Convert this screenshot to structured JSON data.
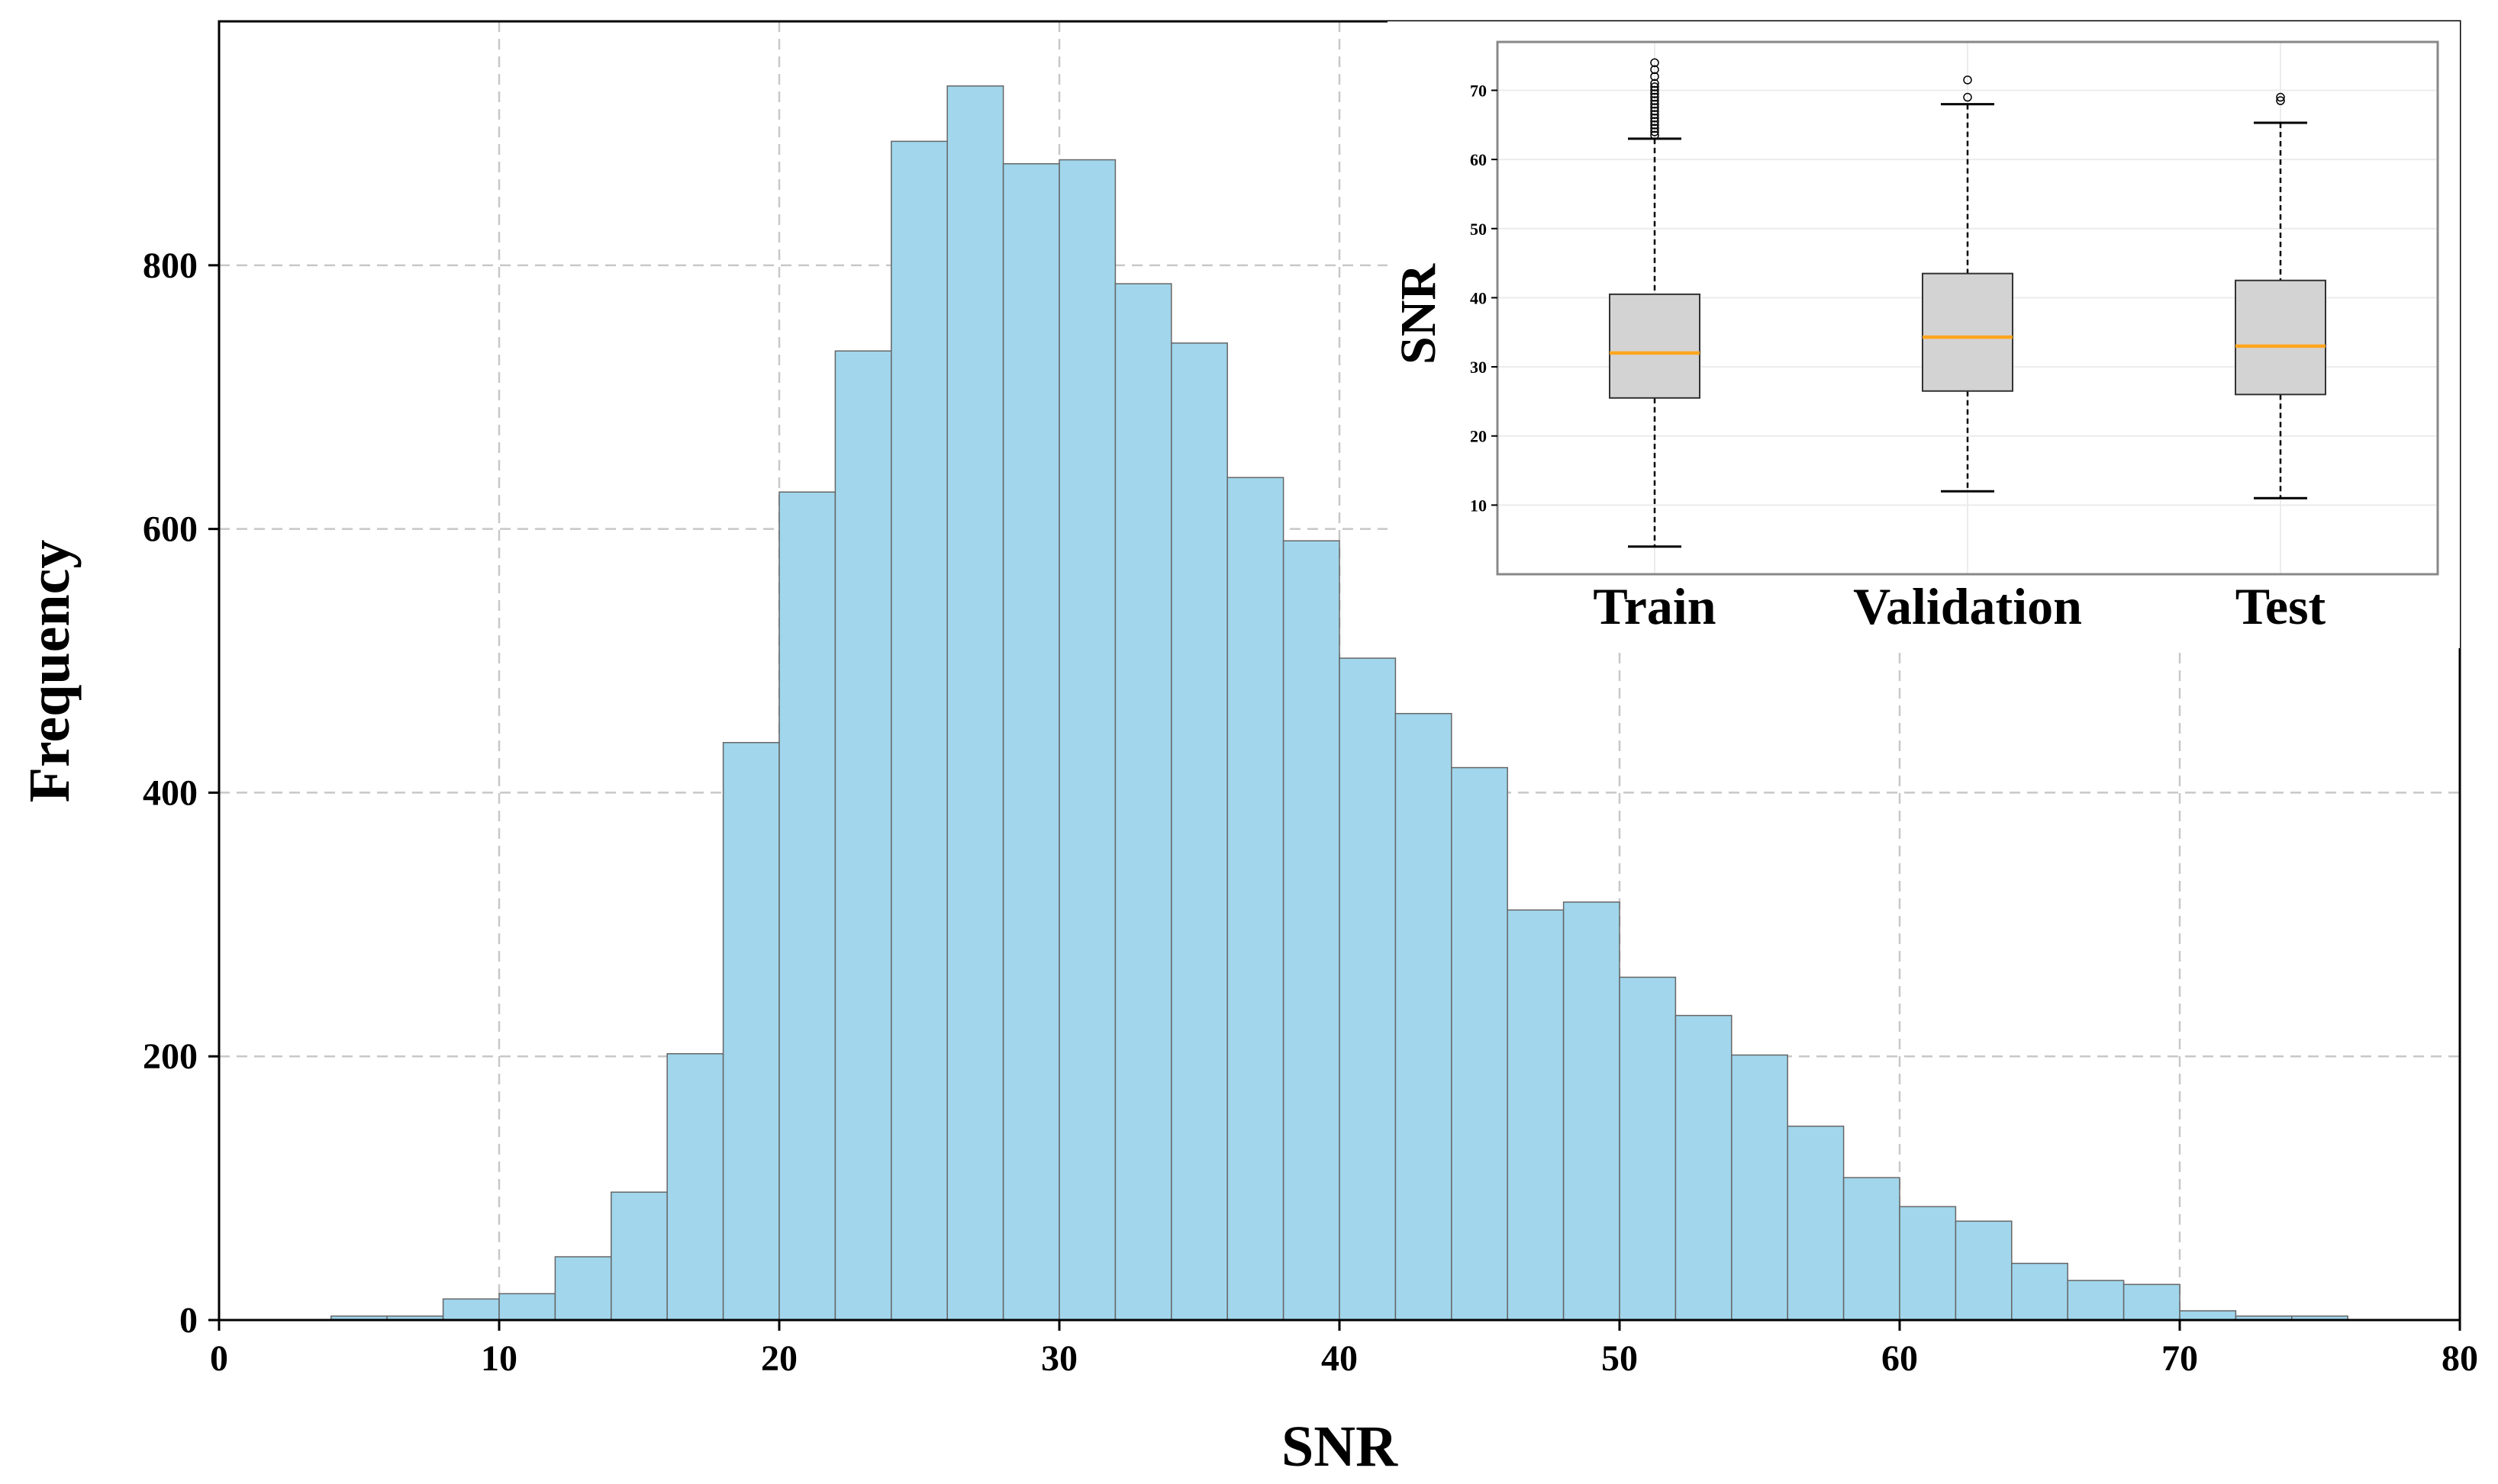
{
  "chart_data": [
    {
      "type": "bar",
      "subtype": "histogram",
      "title": "",
      "xlabel": "SNR",
      "ylabel": "Frequency",
      "xlim": [
        0,
        80
      ],
      "ylim": [
        0,
        985
      ],
      "xticks": [
        0,
        10,
        20,
        30,
        40,
        50,
        60,
        70,
        80
      ],
      "yticks": [
        0,
        200,
        400,
        600,
        800
      ],
      "grid": true,
      "bar_color": "#a1d6ec",
      "edge_color": "#666666",
      "bin_width": 2,
      "bins": [
        {
          "x0": 4,
          "x1": 6,
          "count": 3
        },
        {
          "x0": 6,
          "x1": 8,
          "count": 3
        },
        {
          "x0": 8,
          "x1": 10,
          "count": 16
        },
        {
          "x0": 10,
          "x1": 12,
          "count": 20
        },
        {
          "x0": 12,
          "x1": 14,
          "count": 48
        },
        {
          "x0": 14,
          "x1": 16,
          "count": 97
        },
        {
          "x0": 16,
          "x1": 18,
          "count": 202
        },
        {
          "x0": 18,
          "x1": 20,
          "count": 438
        },
        {
          "x0": 20,
          "x1": 22,
          "count": 628
        },
        {
          "x0": 22,
          "x1": 24,
          "count": 735
        },
        {
          "x0": 24,
          "x1": 26,
          "count": 894
        },
        {
          "x0": 26,
          "x1": 28,
          "count": 936
        },
        {
          "x0": 28,
          "x1": 30,
          "count": 877
        },
        {
          "x0": 30,
          "x1": 32,
          "count": 880
        },
        {
          "x0": 32,
          "x1": 34,
          "count": 786
        },
        {
          "x0": 34,
          "x1": 36,
          "count": 741
        },
        {
          "x0": 36,
          "x1": 38,
          "count": 639
        },
        {
          "x0": 38,
          "x1": 40,
          "count": 591
        },
        {
          "x0": 40,
          "x1": 42,
          "count": 502
        },
        {
          "x0": 42,
          "x1": 44,
          "count": 460
        },
        {
          "x0": 44,
          "x1": 46,
          "count": 419
        },
        {
          "x0": 46,
          "x1": 48,
          "count": 311
        },
        {
          "x0": 48,
          "x1": 50,
          "count": 317
        },
        {
          "x0": 50,
          "x1": 52,
          "count": 260
        },
        {
          "x0": 52,
          "x1": 54,
          "count": 231
        },
        {
          "x0": 54,
          "x1": 56,
          "count": 201
        },
        {
          "x0": 56,
          "x1": 58,
          "count": 147
        },
        {
          "x0": 58,
          "x1": 60,
          "count": 108
        },
        {
          "x0": 60,
          "x1": 62,
          "count": 86
        },
        {
          "x0": 62,
          "x1": 64,
          "count": 75
        },
        {
          "x0": 64,
          "x1": 66,
          "count": 43
        },
        {
          "x0": 66,
          "x1": 68,
          "count": 30
        },
        {
          "x0": 68,
          "x1": 70,
          "count": 27
        },
        {
          "x0": 70,
          "x1": 72,
          "count": 7
        },
        {
          "x0": 72,
          "x1": 74,
          "count": 3
        },
        {
          "x0": 74,
          "x1": 76,
          "count": 3
        }
      ]
    },
    {
      "type": "box",
      "title": "",
      "xlabel": "",
      "ylabel": "SNR",
      "ylim": [
        0,
        77
      ],
      "yticks": [
        10,
        20,
        30,
        40,
        50,
        60,
        70
      ],
      "grid": true,
      "box_color": "#d3d3d3",
      "median_color": "#ffa51f",
      "categories": [
        "Train",
        "Validation",
        "Test"
      ],
      "boxes": [
        {
          "name": "Train",
          "whisker_low": 4,
          "q1": 25.5,
          "median": 32,
          "q3": 40.5,
          "whisker_high": 63,
          "outliers": [
            63.5,
            64,
            64.5,
            65,
            65.5,
            66,
            66.5,
            67,
            67.5,
            68,
            68.5,
            69,
            69.5,
            70,
            70.5,
            71,
            72,
            73,
            74
          ]
        },
        {
          "name": "Validation",
          "whisker_low": 12,
          "q1": 26.5,
          "median": 34.3,
          "q3": 43.5,
          "whisker_high": 68,
          "outliers": [
            69,
            71.5
          ]
        },
        {
          "name": "Test",
          "whisker_low": 11,
          "q1": 26,
          "median": 33,
          "q3": 42.5,
          "whisker_high": 65.3,
          "outliers": [
            68.5,
            69
          ]
        }
      ]
    }
  ]
}
